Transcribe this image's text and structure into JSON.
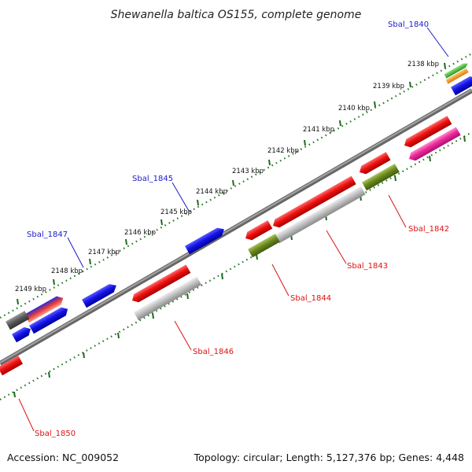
{
  "title": "Shewanella baltica OS155, complete genome",
  "footer": {
    "accession": "Accession: NC_009052",
    "summary": "Topology: circular; Length: 5,127,376 bp; Genes: 4,448"
  },
  "scale_labels": [
    "2138 kbp",
    "2139 kbp",
    "2140 kbp",
    "2141 kbp",
    "2142 kbp",
    "2143 kbp",
    "2144 kbp",
    "2145 kbp",
    "2146 kbp",
    "2147 kbp",
    "2148 kbp",
    "2149 kbp"
  ],
  "gene_labels_top": [
    "Sbal_1840",
    "Sbal_1845",
    "Sbal_1847"
  ],
  "gene_labels_bottom": [
    "Sbal_1842",
    "Sbal_1843",
    "Sbal_1844",
    "Sbal_1846",
    "Sbal_1850"
  ],
  "colors": {
    "backbone": "#8a8a8a",
    "forward_label": "#1a1acc",
    "reverse_label": "#dd1111",
    "blue": "#1414e6",
    "red": "#ee1111",
    "gray": "#b4b4b4",
    "olive": "#6b8a1e",
    "pink": "#ee2a9a",
    "green": "#44bb33",
    "orange": "#ff9922",
    "dotted_track": "#2a7a2a"
  }
}
